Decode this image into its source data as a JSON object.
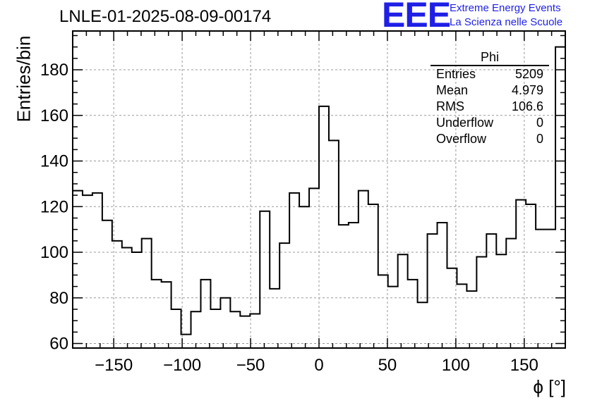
{
  "title": "LNLE-01-2025-08-09-00174",
  "logo": {
    "mark": "EEE",
    "line1": "Extreme Energy Events",
    "line2": "La Scienza nelle Scuole",
    "color": "#1f1fe6"
  },
  "stats": {
    "name": "Phi",
    "rows": [
      {
        "label": "Entries",
        "value": "5209"
      },
      {
        "label": "Mean",
        "value": "4.979"
      },
      {
        "label": "RMS",
        "value": "106.6"
      },
      {
        "label": "Underflow",
        "value": "0"
      },
      {
        "label": "Overflow",
        "value": "0"
      }
    ]
  },
  "chart_data": {
    "type": "bar",
    "style": "step-histogram",
    "title": "LNLE-01-2025-08-09-00174",
    "xlabel": "ϕ [°]",
    "ylabel": "Entries/bin",
    "xlim": [
      -180,
      180
    ],
    "ylim": [
      58,
      197
    ],
    "bin_width": 7.2,
    "x_ticks": [
      -150,
      -100,
      -50,
      0,
      50,
      100,
      150
    ],
    "x_tick_labels": [
      "−150",
      "−100",
      "−50",
      "0",
      "50",
      "100",
      "150"
    ],
    "y_ticks": [
      60,
      80,
      100,
      120,
      140,
      160,
      180
    ],
    "y_tick_labels": [
      "60",
      "80",
      "100",
      "120",
      "140",
      "160",
      "180"
    ],
    "grid": true,
    "legend": "stats box top-right",
    "values": [
      127,
      125,
      126,
      114,
      105,
      102,
      100,
      106,
      88,
      87,
      75,
      64,
      74,
      88,
      75,
      80,
      74,
      72,
      73,
      118,
      84,
      104,
      126,
      120,
      128,
      164,
      149,
      112,
      113,
      127,
      121,
      90,
      85,
      99,
      88,
      78,
      108,
      113,
      93,
      86,
      83,
      98,
      108,
      99,
      106,
      123,
      121,
      110,
      110,
      190
    ],
    "line_color": "#000000"
  }
}
